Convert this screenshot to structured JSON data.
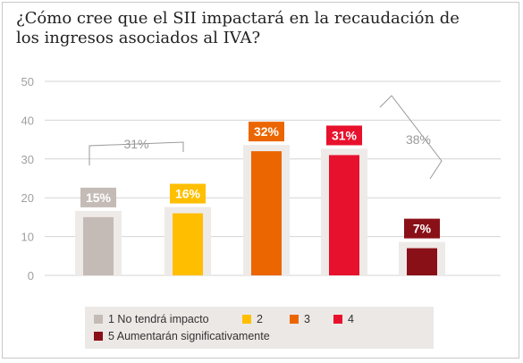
{
  "title": "¿Cómo cree que el SII impactará en la recaudación de los ingresos asociados al IVA?",
  "chart_data": {
    "type": "bar",
    "categories": [
      "1 No tendrá impacto",
      "2",
      "3",
      "4",
      "5 Aumentarán significativamente"
    ],
    "values": [
      15,
      16,
      32,
      31,
      7
    ],
    "value_labels": [
      "15%",
      "16%",
      "32%",
      "31%",
      "7%"
    ],
    "colors": [
      "#c4bbb6",
      "#ffbf00",
      "#eb6600",
      "#e8112d",
      "#8a1017"
    ],
    "ylim": [
      0,
      50
    ],
    "yticks": [
      "0",
      "10",
      "20",
      "30",
      "40",
      "50"
    ],
    "grid": true,
    "legend": "bottom",
    "group_annotations": [
      {
        "label": "31%",
        "covers": [
          "1 No tendrá impacto",
          "2"
        ]
      },
      {
        "label": "38%",
        "covers": [
          "4",
          "5 Aumentarán significativamente"
        ]
      }
    ]
  }
}
